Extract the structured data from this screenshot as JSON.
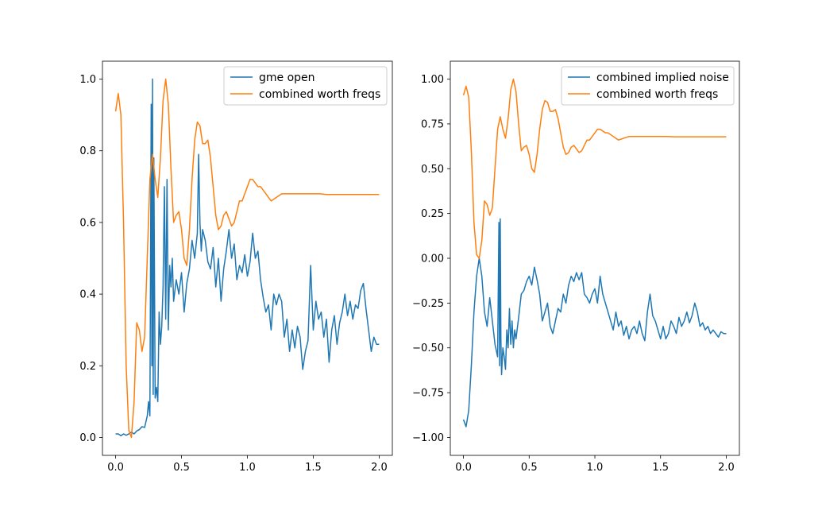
{
  "colors": {
    "blue": "#1f77b4",
    "orange": "#ff7f0e"
  },
  "chart_data": [
    {
      "type": "line",
      "xlim": [
        -0.1,
        2.1
      ],
      "ylim": [
        -0.05,
        1.05
      ],
      "xticks": [
        0.0,
        0.5,
        1.0,
        1.5,
        2.0
      ],
      "xtick_labels": [
        "0.0",
        "0.5",
        "1.0",
        "1.5",
        "2.0"
      ],
      "yticks": [
        0.0,
        0.2,
        0.4,
        0.6,
        0.8,
        1.0
      ],
      "ytick_labels": [
        "0.0",
        "0.2",
        "0.4",
        "0.6",
        "0.8",
        "1.0"
      ],
      "legend_position": "top-right",
      "grid": false,
      "series": [
        {
          "name": "gme open",
          "color": "#1f77b4",
          "x": [
            0.0,
            0.02,
            0.04,
            0.06,
            0.08,
            0.1,
            0.12,
            0.14,
            0.16,
            0.18,
            0.2,
            0.22,
            0.24,
            0.25,
            0.26,
            0.27,
            0.275,
            0.28,
            0.285,
            0.29,
            0.3,
            0.31,
            0.32,
            0.33,
            0.34,
            0.35,
            0.36,
            0.37,
            0.38,
            0.39,
            0.4,
            0.41,
            0.42,
            0.43,
            0.44,
            0.46,
            0.48,
            0.5,
            0.52,
            0.54,
            0.56,
            0.58,
            0.6,
            0.62,
            0.63,
            0.64,
            0.65,
            0.66,
            0.68,
            0.7,
            0.72,
            0.74,
            0.76,
            0.78,
            0.8,
            0.82,
            0.84,
            0.86,
            0.88,
            0.9,
            0.92,
            0.94,
            0.96,
            0.98,
            1.0,
            1.02,
            1.04,
            1.06,
            1.08,
            1.1,
            1.12,
            1.14,
            1.16,
            1.18,
            1.2,
            1.22,
            1.24,
            1.26,
            1.28,
            1.3,
            1.32,
            1.34,
            1.36,
            1.38,
            1.4,
            1.42,
            1.44,
            1.46,
            1.48,
            1.5,
            1.52,
            1.54,
            1.56,
            1.58,
            1.6,
            1.62,
            1.64,
            1.66,
            1.68,
            1.7,
            1.72,
            1.74,
            1.76,
            1.78,
            1.8,
            1.82,
            1.84,
            1.86,
            1.88,
            1.9,
            1.92,
            1.94,
            1.96,
            1.98,
            2.0
          ],
          "values": [
            0.01,
            0.01,
            0.005,
            0.01,
            0.006,
            0.01,
            0.015,
            0.01,
            0.018,
            0.022,
            0.03,
            0.028,
            0.06,
            0.1,
            0.06,
            0.93,
            0.2,
            1.0,
            0.12,
            0.78,
            0.11,
            0.14,
            0.1,
            0.35,
            0.26,
            0.31,
            0.42,
            0.7,
            0.33,
            0.72,
            0.3,
            0.48,
            0.42,
            0.5,
            0.38,
            0.44,
            0.4,
            0.46,
            0.35,
            0.43,
            0.47,
            0.55,
            0.5,
            0.57,
            0.79,
            0.6,
            0.52,
            0.58,
            0.55,
            0.49,
            0.47,
            0.53,
            0.42,
            0.5,
            0.38,
            0.47,
            0.52,
            0.58,
            0.5,
            0.54,
            0.44,
            0.48,
            0.46,
            0.51,
            0.45,
            0.49,
            0.57,
            0.5,
            0.52,
            0.44,
            0.39,
            0.35,
            0.37,
            0.3,
            0.4,
            0.37,
            0.4,
            0.38,
            0.28,
            0.33,
            0.24,
            0.3,
            0.25,
            0.31,
            0.28,
            0.19,
            0.24,
            0.27,
            0.48,
            0.3,
            0.38,
            0.33,
            0.35,
            0.28,
            0.33,
            0.21,
            0.3,
            0.34,
            0.26,
            0.32,
            0.35,
            0.4,
            0.34,
            0.38,
            0.33,
            0.37,
            0.36,
            0.41,
            0.43,
            0.36,
            0.3,
            0.24,
            0.28,
            0.26,
            0.26
          ]
        },
        {
          "name": "combined worth freqs",
          "color": "#ff7f0e",
          "x": [
            0.0,
            0.02,
            0.04,
            0.06,
            0.08,
            0.1,
            0.12,
            0.14,
            0.16,
            0.18,
            0.2,
            0.22,
            0.24,
            0.26,
            0.28,
            0.3,
            0.32,
            0.34,
            0.36,
            0.38,
            0.4,
            0.42,
            0.44,
            0.46,
            0.48,
            0.5,
            0.52,
            0.54,
            0.56,
            0.58,
            0.6,
            0.62,
            0.64,
            0.66,
            0.68,
            0.7,
            0.72,
            0.74,
            0.76,
            0.78,
            0.8,
            0.82,
            0.84,
            0.86,
            0.88,
            0.9,
            0.92,
            0.94,
            0.96,
            0.98,
            1.0,
            1.02,
            1.04,
            1.06,
            1.08,
            1.1,
            1.12,
            1.14,
            1.16,
            1.18,
            1.2,
            1.22,
            1.24,
            1.26,
            1.28,
            1.3,
            1.32,
            1.34,
            1.36,
            1.38,
            1.4,
            1.45,
            1.5,
            1.55,
            1.6,
            1.7,
            1.8,
            1.9,
            2.0
          ],
          "values": [
            0.91,
            0.96,
            0.9,
            0.6,
            0.2,
            0.02,
            0.0,
            0.1,
            0.32,
            0.3,
            0.24,
            0.28,
            0.5,
            0.72,
            0.79,
            0.72,
            0.67,
            0.78,
            0.94,
            1.0,
            0.93,
            0.75,
            0.6,
            0.62,
            0.63,
            0.58,
            0.5,
            0.48,
            0.58,
            0.72,
            0.83,
            0.88,
            0.87,
            0.82,
            0.82,
            0.83,
            0.78,
            0.7,
            0.62,
            0.58,
            0.59,
            0.62,
            0.63,
            0.61,
            0.59,
            0.6,
            0.63,
            0.66,
            0.66,
            0.68,
            0.7,
            0.72,
            0.72,
            0.71,
            0.7,
            0.7,
            0.69,
            0.68,
            0.67,
            0.66,
            0.665,
            0.67,
            0.675,
            0.68,
            0.68,
            0.68,
            0.68,
            0.68,
            0.68,
            0.68,
            0.68,
            0.68,
            0.68,
            0.68,
            0.678,
            0.678,
            0.678,
            0.678,
            0.678
          ]
        }
      ]
    },
    {
      "type": "line",
      "xlim": [
        -0.1,
        2.1
      ],
      "ylim": [
        -1.1,
        1.1
      ],
      "xticks": [
        0.0,
        0.5,
        1.0,
        1.5,
        2.0
      ],
      "xtick_labels": [
        "0.0",
        "0.5",
        "1.0",
        "1.5",
        "2.0"
      ],
      "yticks": [
        -1.0,
        -0.75,
        -0.5,
        -0.25,
        0.0,
        0.25,
        0.5,
        0.75,
        1.0
      ],
      "ytick_labels": [
        "−1.00",
        "−0.75",
        "−0.50",
        "−0.25",
        "0.00",
        "0.25",
        "0.50",
        "0.75",
        "1.00"
      ],
      "legend_position": "top-right",
      "grid": false,
      "series": [
        {
          "name": "combined implied noise",
          "color": "#1f77b4",
          "x": [
            0.0,
            0.02,
            0.04,
            0.06,
            0.08,
            0.1,
            0.12,
            0.14,
            0.16,
            0.18,
            0.2,
            0.22,
            0.24,
            0.26,
            0.27,
            0.275,
            0.28,
            0.285,
            0.29,
            0.3,
            0.31,
            0.32,
            0.33,
            0.34,
            0.35,
            0.36,
            0.37,
            0.38,
            0.39,
            0.4,
            0.42,
            0.44,
            0.46,
            0.48,
            0.5,
            0.52,
            0.54,
            0.56,
            0.58,
            0.6,
            0.62,
            0.64,
            0.66,
            0.68,
            0.7,
            0.72,
            0.74,
            0.76,
            0.78,
            0.8,
            0.82,
            0.84,
            0.86,
            0.88,
            0.9,
            0.92,
            0.94,
            0.96,
            0.98,
            1.0,
            1.02,
            1.04,
            1.06,
            1.08,
            1.1,
            1.12,
            1.14,
            1.16,
            1.18,
            1.2,
            1.22,
            1.24,
            1.26,
            1.28,
            1.3,
            1.32,
            1.34,
            1.36,
            1.38,
            1.4,
            1.42,
            1.44,
            1.46,
            1.48,
            1.5,
            1.52,
            1.54,
            1.56,
            1.58,
            1.6,
            1.62,
            1.64,
            1.66,
            1.68,
            1.7,
            1.72,
            1.74,
            1.76,
            1.78,
            1.8,
            1.82,
            1.84,
            1.86,
            1.88,
            1.9,
            1.92,
            1.94,
            1.96,
            1.98,
            2.0
          ],
          "values": [
            -0.9,
            -0.94,
            -0.85,
            -0.6,
            -0.3,
            -0.1,
            0.0,
            -0.1,
            -0.3,
            -0.38,
            -0.22,
            -0.35,
            -0.48,
            -0.55,
            0.2,
            -0.6,
            0.22,
            -0.45,
            -0.65,
            -0.5,
            -0.55,
            -0.62,
            -0.4,
            -0.5,
            -0.28,
            -0.48,
            -0.35,
            -0.5,
            -0.4,
            -0.45,
            -0.33,
            -0.2,
            -0.18,
            -0.13,
            -0.1,
            -0.15,
            -0.05,
            -0.12,
            -0.2,
            -0.35,
            -0.3,
            -0.25,
            -0.38,
            -0.42,
            -0.35,
            -0.28,
            -0.3,
            -0.2,
            -0.25,
            -0.15,
            -0.1,
            -0.13,
            -0.08,
            -0.12,
            -0.08,
            -0.2,
            -0.22,
            -0.25,
            -0.2,
            -0.17,
            -0.25,
            -0.1,
            -0.2,
            -0.25,
            -0.3,
            -0.35,
            -0.4,
            -0.3,
            -0.38,
            -0.35,
            -0.43,
            -0.38,
            -0.45,
            -0.4,
            -0.38,
            -0.42,
            -0.35,
            -0.42,
            -0.46,
            -0.3,
            -0.2,
            -0.32,
            -0.35,
            -0.4,
            -0.45,
            -0.38,
            -0.45,
            -0.42,
            -0.35,
            -0.38,
            -0.42,
            -0.33,
            -0.38,
            -0.35,
            -0.3,
            -0.36,
            -0.32,
            -0.25,
            -0.3,
            -0.38,
            -0.36,
            -0.4,
            -0.38,
            -0.42,
            -0.4,
            -0.42,
            -0.44,
            -0.41,
            -0.42,
            -0.42
          ]
        },
        {
          "name": "combined worth freqs",
          "color": "#ff7f0e",
          "x": [
            0.0,
            0.02,
            0.04,
            0.06,
            0.08,
            0.1,
            0.12,
            0.14,
            0.16,
            0.18,
            0.2,
            0.22,
            0.24,
            0.26,
            0.28,
            0.3,
            0.32,
            0.34,
            0.36,
            0.38,
            0.4,
            0.42,
            0.44,
            0.46,
            0.48,
            0.5,
            0.52,
            0.54,
            0.56,
            0.58,
            0.6,
            0.62,
            0.64,
            0.66,
            0.68,
            0.7,
            0.72,
            0.74,
            0.76,
            0.78,
            0.8,
            0.82,
            0.84,
            0.86,
            0.88,
            0.9,
            0.92,
            0.94,
            0.96,
            0.98,
            1.0,
            1.02,
            1.04,
            1.06,
            1.08,
            1.1,
            1.12,
            1.14,
            1.16,
            1.18,
            1.2,
            1.22,
            1.24,
            1.26,
            1.28,
            1.3,
            1.32,
            1.34,
            1.36,
            1.38,
            1.4,
            1.45,
            1.5,
            1.55,
            1.6,
            1.7,
            1.8,
            1.9,
            2.0
          ],
          "values": [
            0.91,
            0.96,
            0.9,
            0.6,
            0.2,
            0.02,
            0.0,
            0.1,
            0.32,
            0.3,
            0.24,
            0.28,
            0.5,
            0.72,
            0.79,
            0.72,
            0.67,
            0.78,
            0.94,
            1.0,
            0.93,
            0.75,
            0.6,
            0.62,
            0.63,
            0.58,
            0.5,
            0.48,
            0.58,
            0.72,
            0.83,
            0.88,
            0.87,
            0.82,
            0.82,
            0.83,
            0.78,
            0.7,
            0.62,
            0.58,
            0.59,
            0.62,
            0.63,
            0.61,
            0.59,
            0.6,
            0.63,
            0.66,
            0.66,
            0.68,
            0.7,
            0.72,
            0.72,
            0.71,
            0.7,
            0.7,
            0.69,
            0.68,
            0.67,
            0.66,
            0.665,
            0.67,
            0.675,
            0.68,
            0.68,
            0.68,
            0.68,
            0.68,
            0.68,
            0.68,
            0.68,
            0.68,
            0.68,
            0.68,
            0.678,
            0.678,
            0.678,
            0.678,
            0.678
          ]
        }
      ]
    }
  ]
}
